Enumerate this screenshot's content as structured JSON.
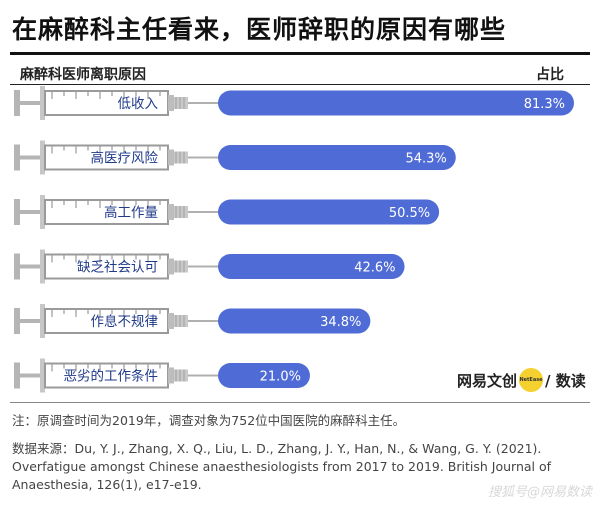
{
  "title": "在麻醉科主任看来，医师辞职的原因有哪些",
  "header": {
    "left_label": "麻醉科医师离职原因",
    "right_label": "占比"
  },
  "chart_data": {
    "type": "bar",
    "orientation": "horizontal",
    "categories": [
      "低收入",
      "高医疗风险",
      "高工作量",
      "缺乏社会认可",
      "作息不规律",
      "恶劣的工作条件"
    ],
    "values": [
      81.3,
      54.3,
      50.5,
      42.6,
      34.8,
      21.0
    ],
    "value_labels": [
      "81.3%",
      "54.3%",
      "50.5%",
      "42.6%",
      "34.8%",
      "21.0%"
    ],
    "unit": "%",
    "xlim": [
      0,
      81.3
    ],
    "bar_color": "#4f6bd6",
    "value_label_color": "#ffffff",
    "grid": false,
    "legend": "none"
  },
  "brand": {
    "left": "网易文创",
    "badge": "NetEase",
    "right": "/ 数读"
  },
  "footer": {
    "note": "注：原调查时间为2019年，调查对象为752位中国医院的麻醉科主任。",
    "source": "数据来源：Du, Y. J., Zhang, X. Q., Liu, L. D., Zhang, J. Y., Han, N., & Wang, G. Y. (2021). Overfatigue amongst Chinese anaesthesiologists from 2017 to 2019. British Journal of Anaesthesia, 126(1), e17-e19."
  },
  "watermark": "搜狐号@网易数读"
}
